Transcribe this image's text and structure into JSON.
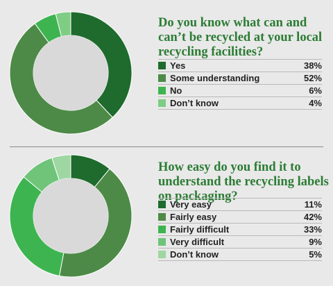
{
  "chart_data": [
    {
      "type": "pie",
      "title": "Do you know what can and can’t be recycled at your local recycling facilities?",
      "categories": [
        "Yes",
        "Some understanding",
        "No",
        "Don’t know"
      ],
      "values": [
        38,
        52,
        6,
        4
      ],
      "value_labels": [
        "38%",
        "52%",
        "6%",
        "4%"
      ],
      "colors": [
        "#1e6b2d",
        "#4d8a47",
        "#3eb450",
        "#7fcc85"
      ],
      "donut": true,
      "legend": "right"
    },
    {
      "type": "pie",
      "title": "How easy do you find it to understand the recycling labels on packaging?",
      "categories": [
        "Very easy",
        "Fairly easy",
        "Fairly difficult",
        "Very difficult",
        "Don’t know"
      ],
      "values": [
        11,
        42,
        33,
        9,
        5
      ],
      "value_labels": [
        "11%",
        "42%",
        "33%",
        "9%",
        "5%"
      ],
      "colors": [
        "#1e6b2d",
        "#4d8a47",
        "#3eb450",
        "#6fc47a",
        "#9ed7a2"
      ],
      "donut": true,
      "legend": "right"
    }
  ],
  "colors": {
    "background": "#e9e9e9",
    "title": "#2c7c34",
    "donut_hole": "#d9d9d9"
  }
}
